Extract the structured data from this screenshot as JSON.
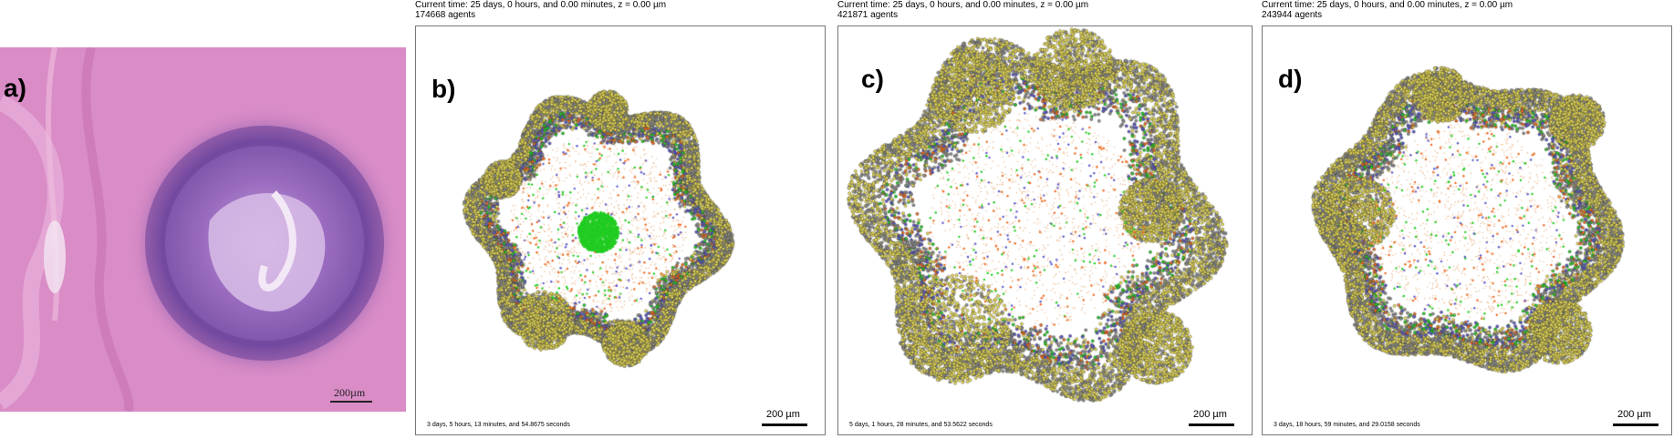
{
  "colors": {
    "stroma_pink": "#d98cc6",
    "nuclei_purple": "#7a4fa8",
    "yellow_agents": "#ecdf55",
    "grey_agents": "#8d8d8d",
    "blue_agents": "#5a58c8",
    "green_agents": "#22cc22",
    "orange_agents": "#ee6a20",
    "tan_agents": "#e8b080"
  },
  "panels": [
    {
      "label": "a)",
      "scale_label": "200µm"
    },
    {
      "label": "b)",
      "header_time": "Current time: 25 days, 0 hours, and 0.00 minutes, z = 0.00 µm",
      "header_agents": "174668 agents",
      "footer_text": "3 days, 5 hours, 13 minutes, and 54.8675 seconds",
      "scale_label": "200 µm"
    },
    {
      "label": "c)",
      "header_time": "Current time: 25 days, 0 hours, and 0.00 minutes, z = 0.00 µm",
      "header_agents": "421871 agents",
      "footer_text": "5 days, 1 hours, 28 minutes, and 53.5622 seconds",
      "scale_label": "200 µm"
    },
    {
      "label": "d)",
      "header_time": "Current time: 25 days, 0 hours, and 0.00 minutes, z = 0.00 µm",
      "header_agents": "243944 agents",
      "footer_text": "3 days, 18 hours, 59 minutes, and 29.0158 seconds",
      "scale_label": "200 µm"
    }
  ]
}
